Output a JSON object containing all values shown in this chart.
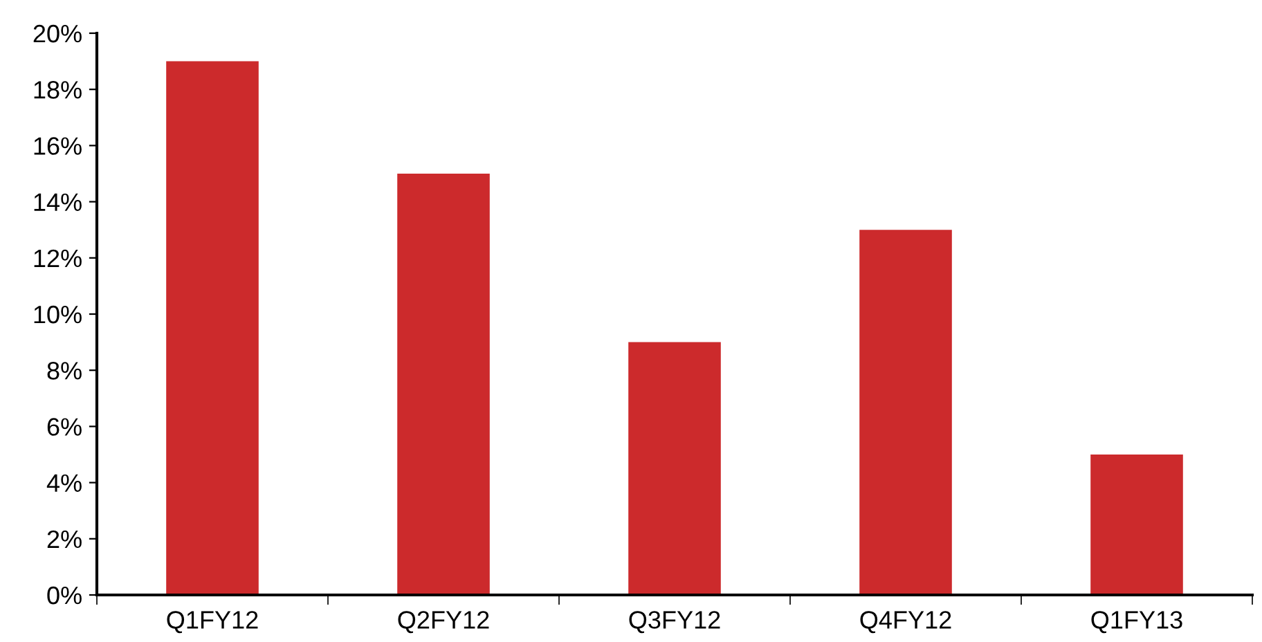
{
  "chart_data": {
    "type": "bar",
    "categories": [
      "Q1FY12",
      "Q2FY12",
      "Q3FY12",
      "Q4FY12",
      "Q1FY13"
    ],
    "values": [
      19,
      15,
      9,
      13,
      5
    ],
    "color": "#cc2a2c",
    "ylim": [
      0,
      20
    ],
    "yticks": [
      {
        "value": 0,
        "label": "0%"
      },
      {
        "value": 2,
        "label": "2%"
      },
      {
        "value": 4,
        "label": "4%"
      },
      {
        "value": 6,
        "label": "6%"
      },
      {
        "value": 8,
        "label": "8%"
      },
      {
        "value": 10,
        "label": "10%"
      },
      {
        "value": 12,
        "label": "12%"
      },
      {
        "value": 14,
        "label": "14%"
      },
      {
        "value": 16,
        "label": "16%"
      },
      {
        "value": 18,
        "label": "18%"
      },
      {
        "value": 20,
        "label": "20%"
      }
    ],
    "grid": false,
    "legend": false
  }
}
